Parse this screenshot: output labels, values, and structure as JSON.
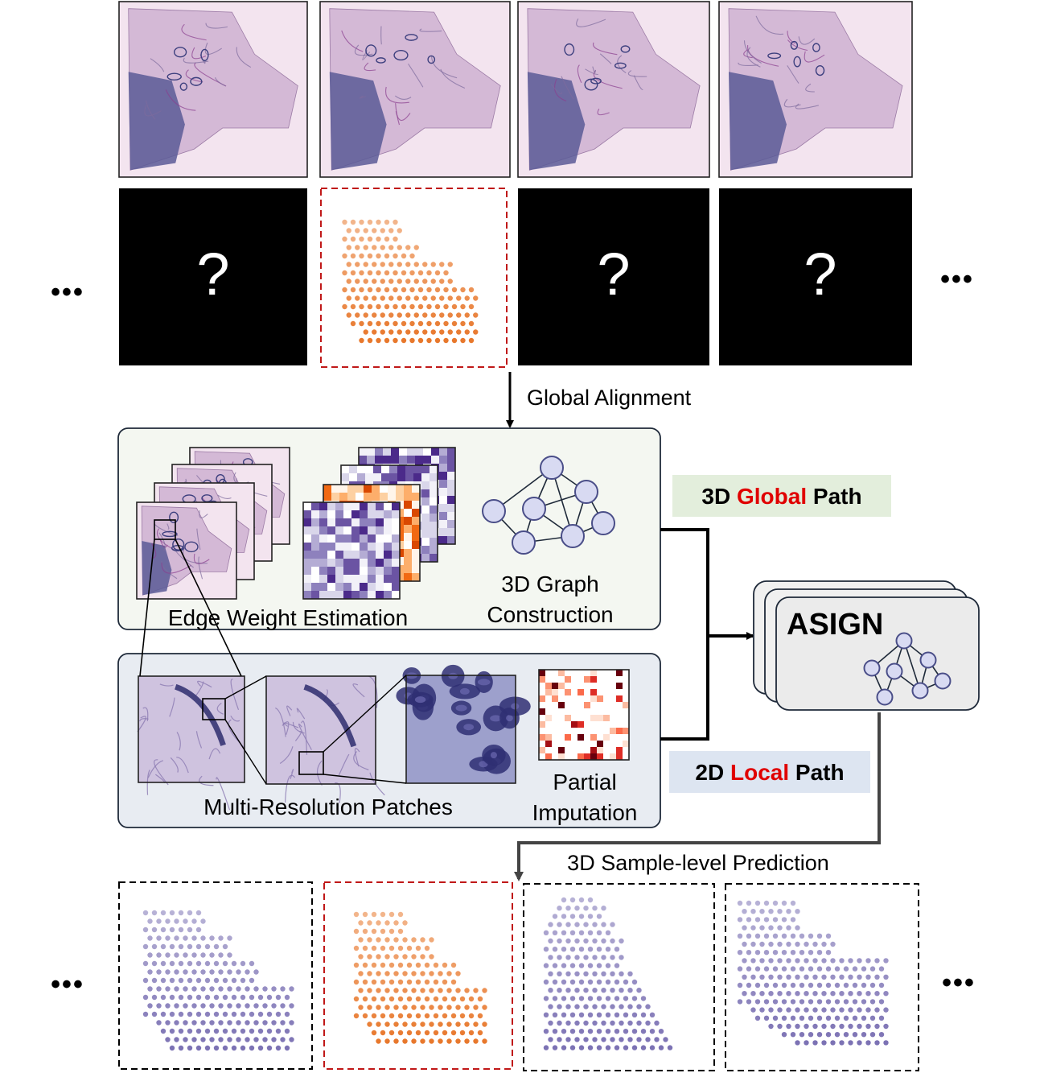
{
  "question_mark": "?",
  "ellipsis": "•••",
  "labels": {
    "global_alignment": "Global Alignment",
    "global_path_prefix": "3D ",
    "global_path_word": "Global",
    "global_path_suffix": " Path",
    "local_path_prefix": "2D ",
    "local_path_word": "Local",
    "local_path_suffix": " Path",
    "edge_weight": "Edge Weight Estimation",
    "graph_line1": "3D Graph",
    "graph_line2": "Construction",
    "multires": "Multi-Resolution Patches",
    "partial_line1": "Partial",
    "partial_line2": "Imputation",
    "asign": "ASIGN",
    "prediction": "3D Sample-level Prediction"
  },
  "colors": {
    "tissue_bg": "#e8d2e3",
    "tissue_dark": "#3c3f7e",
    "orange_spot": "#e8782c",
    "purple_spot": "#7c72b4",
    "global_panel": "#f4f7f1",
    "local_panel": "#e8ecf2",
    "global_tag": "#e3eedc",
    "local_tag": "#dde5f1",
    "highlight_red": "#e00000",
    "dashed_red": "#c01818",
    "node_fill": "#d8daf2",
    "node_stroke": "#4a4e88"
  }
}
